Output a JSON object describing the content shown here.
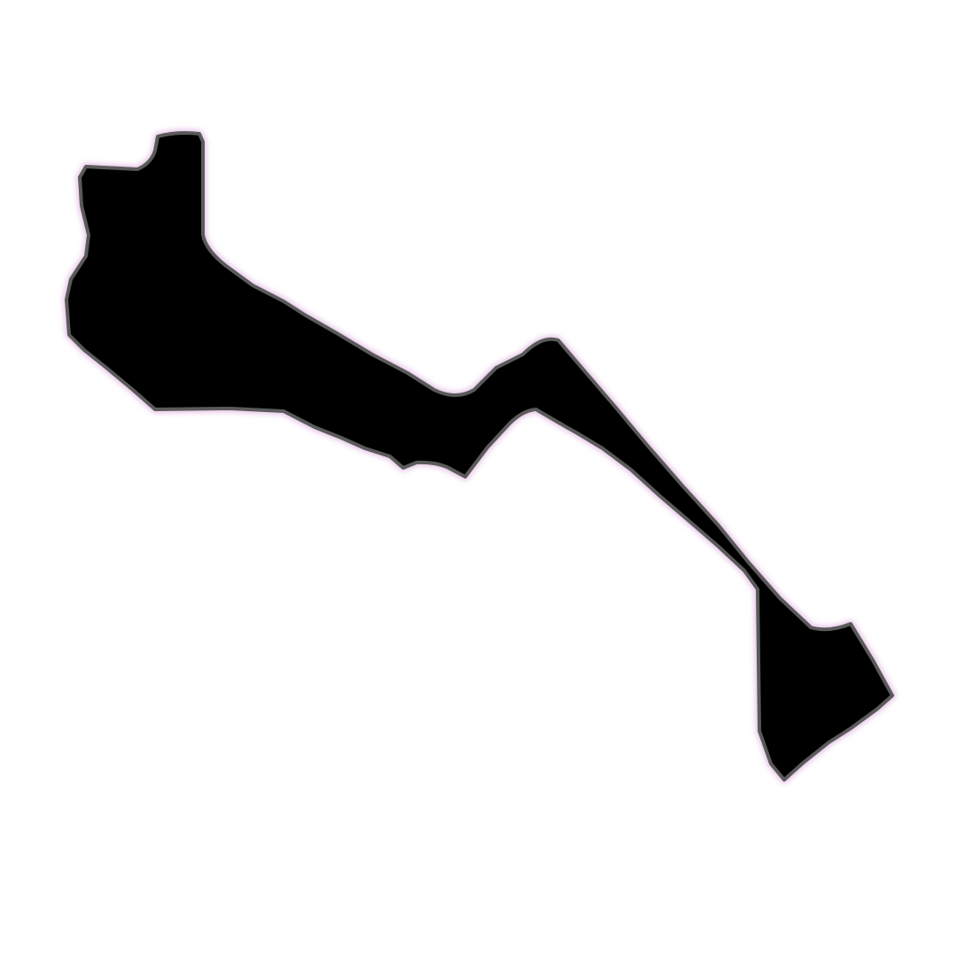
{
  "canvas": {
    "background": "#ffffff"
  },
  "silhouette": {
    "fill_color": "#000000",
    "edge_color": "#5a5a5a",
    "glow_color": "#e8c8e8"
  }
}
